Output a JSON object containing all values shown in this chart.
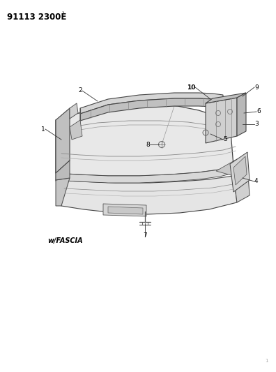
{
  "title_text": "91113 2300È",
  "background_color": "#ffffff",
  "label_color": "#000000",
  "line_color": "#333333",
  "light_gray": "#cccccc",
  "mid_gray": "#aaaaaa",
  "dark_gray": "#666666",
  "watermark_text": "w/FASCIA",
  "label_fontsize": 6.5,
  "title_fontsize": 8.5
}
